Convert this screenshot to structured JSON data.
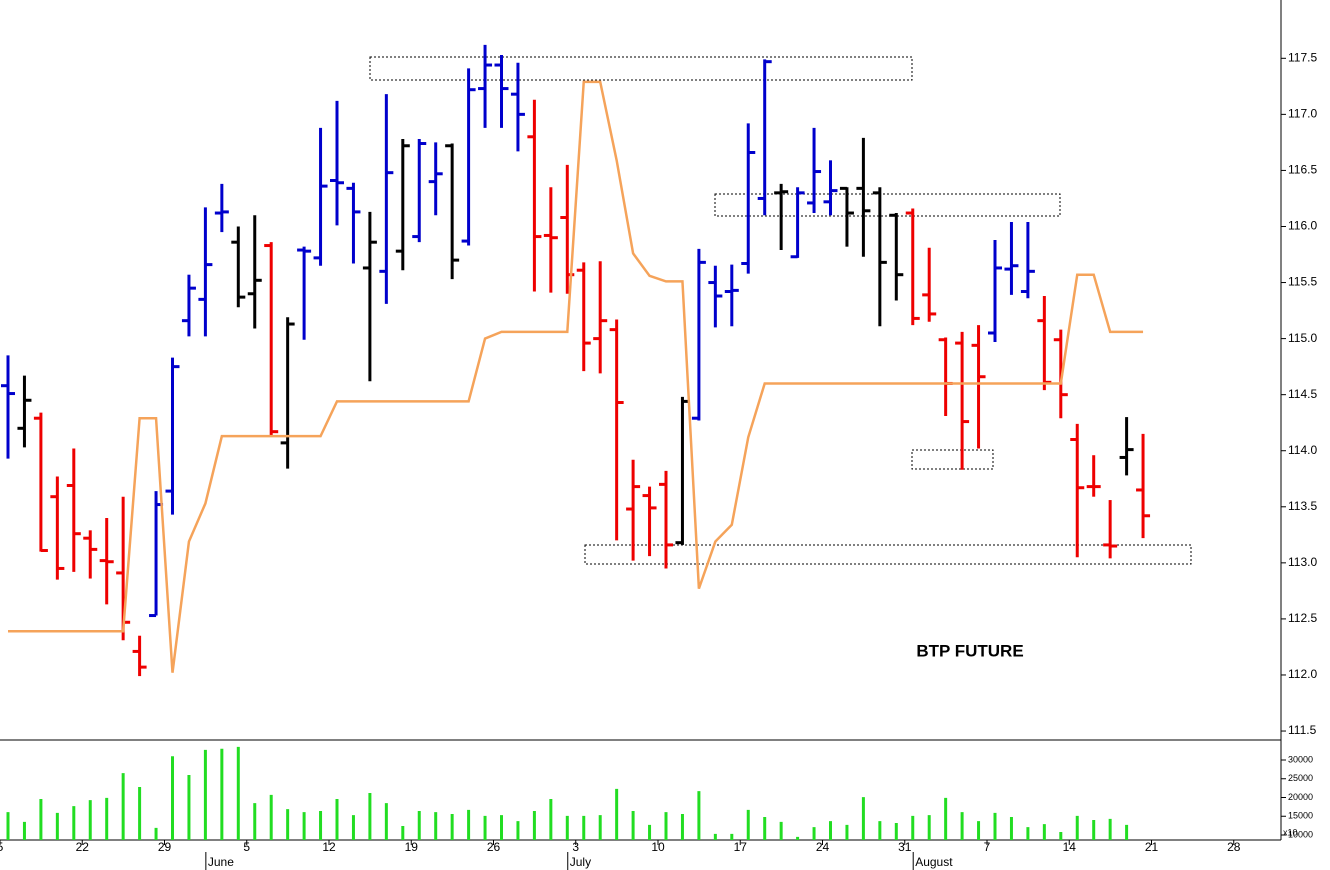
{
  "chart_data": [
    {
      "type": "ohlc",
      "title": "BTP FUTURE",
      "categories": [
        "5",
        null,
        null,
        null,
        null,
        "22",
        null,
        null,
        null,
        null,
        "29",
        null,
        null,
        null,
        null,
        "5",
        null,
        null,
        null,
        null,
        "12",
        null,
        null,
        null,
        null,
        "19",
        null,
        null,
        null,
        null,
        "26",
        null,
        null,
        null,
        null,
        "3",
        null,
        null,
        null,
        null,
        "10",
        null,
        null,
        null,
        null,
        "17",
        null,
        null,
        null,
        null,
        "24",
        null,
        null,
        null,
        null,
        "31",
        null,
        null,
        null,
        null,
        "7",
        null,
        null,
        null,
        null,
        "14",
        null,
        null,
        null,
        null,
        "21",
        null,
        null,
        null,
        null,
        "28"
      ],
      "months": [
        null,
        null,
        null,
        null,
        null,
        null,
        null,
        null,
        null,
        null,
        null,
        null,
        null,
        "June",
        null,
        null,
        null,
        null,
        null,
        null,
        null,
        null,
        null,
        null,
        null,
        null,
        null,
        null,
        null,
        null,
        null,
        null,
        null,
        null,
        null,
        "July",
        null,
        null,
        null,
        null,
        null,
        null,
        null,
        null,
        null,
        null,
        null,
        null,
        null,
        null,
        null,
        null,
        null,
        null,
        null,
        null,
        "August",
        null,
        null,
        null,
        null,
        null,
        null,
        null,
        null,
        null,
        null,
        null,
        null,
        null,
        null,
        null,
        null,
        null,
        null,
        null
      ],
      "open": [
        114.58,
        114.2,
        114.29,
        113.59,
        113.69,
        113.22,
        113.02,
        112.91,
        112.21,
        112.53,
        113.64,
        115.16,
        115.35,
        116.12,
        115.86,
        115.4,
        115.83,
        114.07,
        115.79,
        115.72,
        116.41,
        116.34,
        115.63,
        115.6,
        115.78,
        115.91,
        116.4,
        116.72,
        115.87,
        117.23,
        117.44,
        117.18,
        116.8,
        115.92,
        116.08,
        115.61,
        115.0,
        115.08,
        113.48,
        113.6,
        113.7,
        113.18,
        114.29,
        115.5,
        115.42,
        115.67,
        116.25,
        116.3,
        115.73,
        116.21,
        116.22,
        116.34,
        116.34,
        116.3,
        116.1,
        116.12,
        115.39,
        114.99,
        114.96,
        114.94,
        115.05,
        115.62,
        115.42,
        115.16,
        114.99,
        114.1,
        113.68,
        113.16,
        113.94,
        113.65,
        null,
        null,
        null,
        null,
        null,
        null
      ],
      "high": [
        114.85,
        114.67,
        114.34,
        113.77,
        114.02,
        113.29,
        113.4,
        113.59,
        112.35,
        113.64,
        114.83,
        115.57,
        116.17,
        116.38,
        116.0,
        116.1,
        115.86,
        115.19,
        115.82,
        116.88,
        117.12,
        116.39,
        116.13,
        117.18,
        116.78,
        116.78,
        116.75,
        116.74,
        117.41,
        117.62,
        117.53,
        117.46,
        117.13,
        116.35,
        116.55,
        115.68,
        115.69,
        115.17,
        113.92,
        113.68,
        113.82,
        114.48,
        115.8,
        115.65,
        115.66,
        116.92,
        117.49,
        116.38,
        116.35,
        116.88,
        116.59,
        116.35,
        116.79,
        116.35,
        116.12,
        116.16,
        115.81,
        115.01,
        115.06,
        115.12,
        115.88,
        116.04,
        116.04,
        115.38,
        115.08,
        114.24,
        113.96,
        113.56,
        114.3,
        114.15,
        null,
        null,
        null,
        null,
        null,
        null
      ],
      "low": [
        113.93,
        114.03,
        113.1,
        112.85,
        112.92,
        112.86,
        112.63,
        112.31,
        111.99,
        112.53,
        113.43,
        115.02,
        115.02,
        115.95,
        115.28,
        115.09,
        114.13,
        113.84,
        114.99,
        115.65,
        116.01,
        115.67,
        114.62,
        115.31,
        115.61,
        115.86,
        116.1,
        115.53,
        115.83,
        116.88,
        116.88,
        116.67,
        115.42,
        115.41,
        115.4,
        114.71,
        114.69,
        113.2,
        113.02,
        113.06,
        112.95,
        113.16,
        114.27,
        115.1,
        115.11,
        115.58,
        116.1,
        115.79,
        115.72,
        116.12,
        116.1,
        115.82,
        115.73,
        115.11,
        115.34,
        115.12,
        115.15,
        114.31,
        113.83,
        114.02,
        114.97,
        115.39,
        115.36,
        114.54,
        114.29,
        113.05,
        113.59,
        113.04,
        113.78,
        113.22,
        null,
        null,
        null,
        null,
        null,
        null
      ],
      "close": [
        114.51,
        114.45,
        113.11,
        112.95,
        113.26,
        113.12,
        113.01,
        112.47,
        112.07,
        113.52,
        114.75,
        115.45,
        115.66,
        116.13,
        115.37,
        115.52,
        114.17,
        115.13,
        115.78,
        116.36,
        116.39,
        116.13,
        115.86,
        116.48,
        116.72,
        116.74,
        116.47,
        115.7,
        117.22,
        117.44,
        117.23,
        117.0,
        115.91,
        115.9,
        115.57,
        114.96,
        115.16,
        114.43,
        113.68,
        113.49,
        113.16,
        114.44,
        115.68,
        115.38,
        115.43,
        116.66,
        117.47,
        116.31,
        116.3,
        116.49,
        116.32,
        116.12,
        116.14,
        115.68,
        115.57,
        115.18,
        115.22,
        114.6,
        114.26,
        114.66,
        115.63,
        115.65,
        115.6,
        114.61,
        114.5,
        113.67,
        113.68,
        113.15,
        114.01,
        113.42,
        null,
        null,
        null,
        null,
        null,
        null
      ],
      "bar_colors": [
        "#0000cc",
        "#000000",
        "#ee0000",
        "#ee0000",
        "#ee0000",
        "#ee0000",
        "#ee0000",
        "#ee0000",
        "#ee0000",
        "#0000cc",
        "#0000cc",
        "#0000cc",
        "#0000cc",
        "#0000cc",
        "#000000",
        "#000000",
        "#ee0000",
        "#000000",
        "#0000cc",
        "#0000cc",
        "#0000cc",
        "#0000cc",
        "#000000",
        "#0000cc",
        "#000000",
        "#0000cc",
        "#0000cc",
        "#000000",
        "#0000cc",
        "#0000cc",
        "#0000cc",
        "#0000cc",
        "#ee0000",
        "#ee0000",
        "#ee0000",
        "#ee0000",
        "#ee0000",
        "#ee0000",
        "#ee0000",
        "#ee0000",
        "#ee0000",
        "#000000",
        "#0000cc",
        "#0000cc",
        "#0000cc",
        "#0000cc",
        "#0000cc",
        "#000000",
        "#0000cc",
        "#0000cc",
        "#0000cc",
        "#000000",
        "#000000",
        "#000000",
        "#000000",
        "#ee0000",
        "#ee0000",
        "#ee0000",
        "#ee0000",
        "#ee0000",
        "#0000cc",
        "#0000cc",
        "#0000cc",
        "#ee0000",
        "#ee0000",
        "#ee0000",
        "#ee0000",
        "#ee0000",
        "#000000",
        "#ee0000",
        null,
        null,
        null,
        null,
        null,
        null
      ],
      "overlay": {
        "type": "line",
        "color": "#f5a35a",
        "values": [
          112.39,
          112.39,
          112.39,
          112.39,
          112.39,
          112.39,
          112.39,
          112.39,
          114.29,
          114.29,
          112.02,
          113.19,
          113.53,
          114.13,
          114.13,
          114.13,
          114.13,
          114.13,
          114.13,
          114.13,
          114.44,
          114.44,
          114.44,
          114.44,
          114.44,
          114.44,
          114.44,
          114.44,
          114.44,
          115.0,
          115.06,
          115.06,
          115.06,
          115.06,
          115.06,
          117.29,
          117.29,
          116.59,
          115.76,
          115.56,
          115.51,
          115.51,
          112.77,
          113.19,
          113.34,
          114.12,
          114.6,
          114.6,
          114.6,
          114.6,
          114.6,
          114.6,
          114.6,
          114.6,
          114.6,
          114.6,
          114.6,
          114.6,
          114.6,
          114.6,
          114.6,
          114.6,
          114.6,
          114.6,
          114.6,
          115.57,
          115.57,
          115.06,
          115.06,
          115.06,
          null,
          null,
          null,
          null,
          null,
          null
        ]
      },
      "ylim": [
        111.42,
        118.02
      ],
      "yticks": [
        {
          "value": 111.5,
          "label": "111.5"
        },
        {
          "value": 112,
          "label": "112.0"
        },
        112.5,
        {
          "value": 113,
          "label": "113.0"
        },
        113.5,
        {
          "value": 114,
          "label": "114.0"
        },
        114.5,
        {
          "value": 115,
          "label": "115.0"
        },
        115.5,
        {
          "value": 116,
          "label": "116.0"
        },
        116.5,
        {
          "value": 117,
          "label": "117.0"
        },
        117.5
      ]
    },
    {
      "type": "bar",
      "color": "#22dd22",
      "axis_label": "x10",
      "values": [
        16100,
        13500,
        19600,
        15900,
        17700,
        19300,
        19900,
        26500,
        22800,
        11900,
        31000,
        26000,
        32700,
        33000,
        33500,
        18500,
        20700,
        16900,
        16100,
        16400,
        19600,
        15300,
        21200,
        18500,
        12400,
        16400,
        16100,
        15600,
        16700,
        15100,
        15300,
        13700,
        16400,
        19600,
        15100,
        15100,
        15300,
        22300,
        16400,
        12700,
        16100,
        15600,
        21700,
        10300,
        10300,
        16700,
        14800,
        13500,
        9500,
        12100,
        13700,
        12700,
        20100,
        13700,
        13200,
        15100,
        15300,
        19900,
        16100,
        13700,
        15900,
        14800,
        12100,
        12900,
        10800,
        15100,
        14000,
        14300,
        12700,
        null,
        null,
        null,
        null,
        null,
        null,
        null
      ],
      "ylim": [
        8667,
        35333
      ],
      "yticks": [
        10000,
        15000,
        20000,
        25000,
        30000
      ]
    }
  ]
}
